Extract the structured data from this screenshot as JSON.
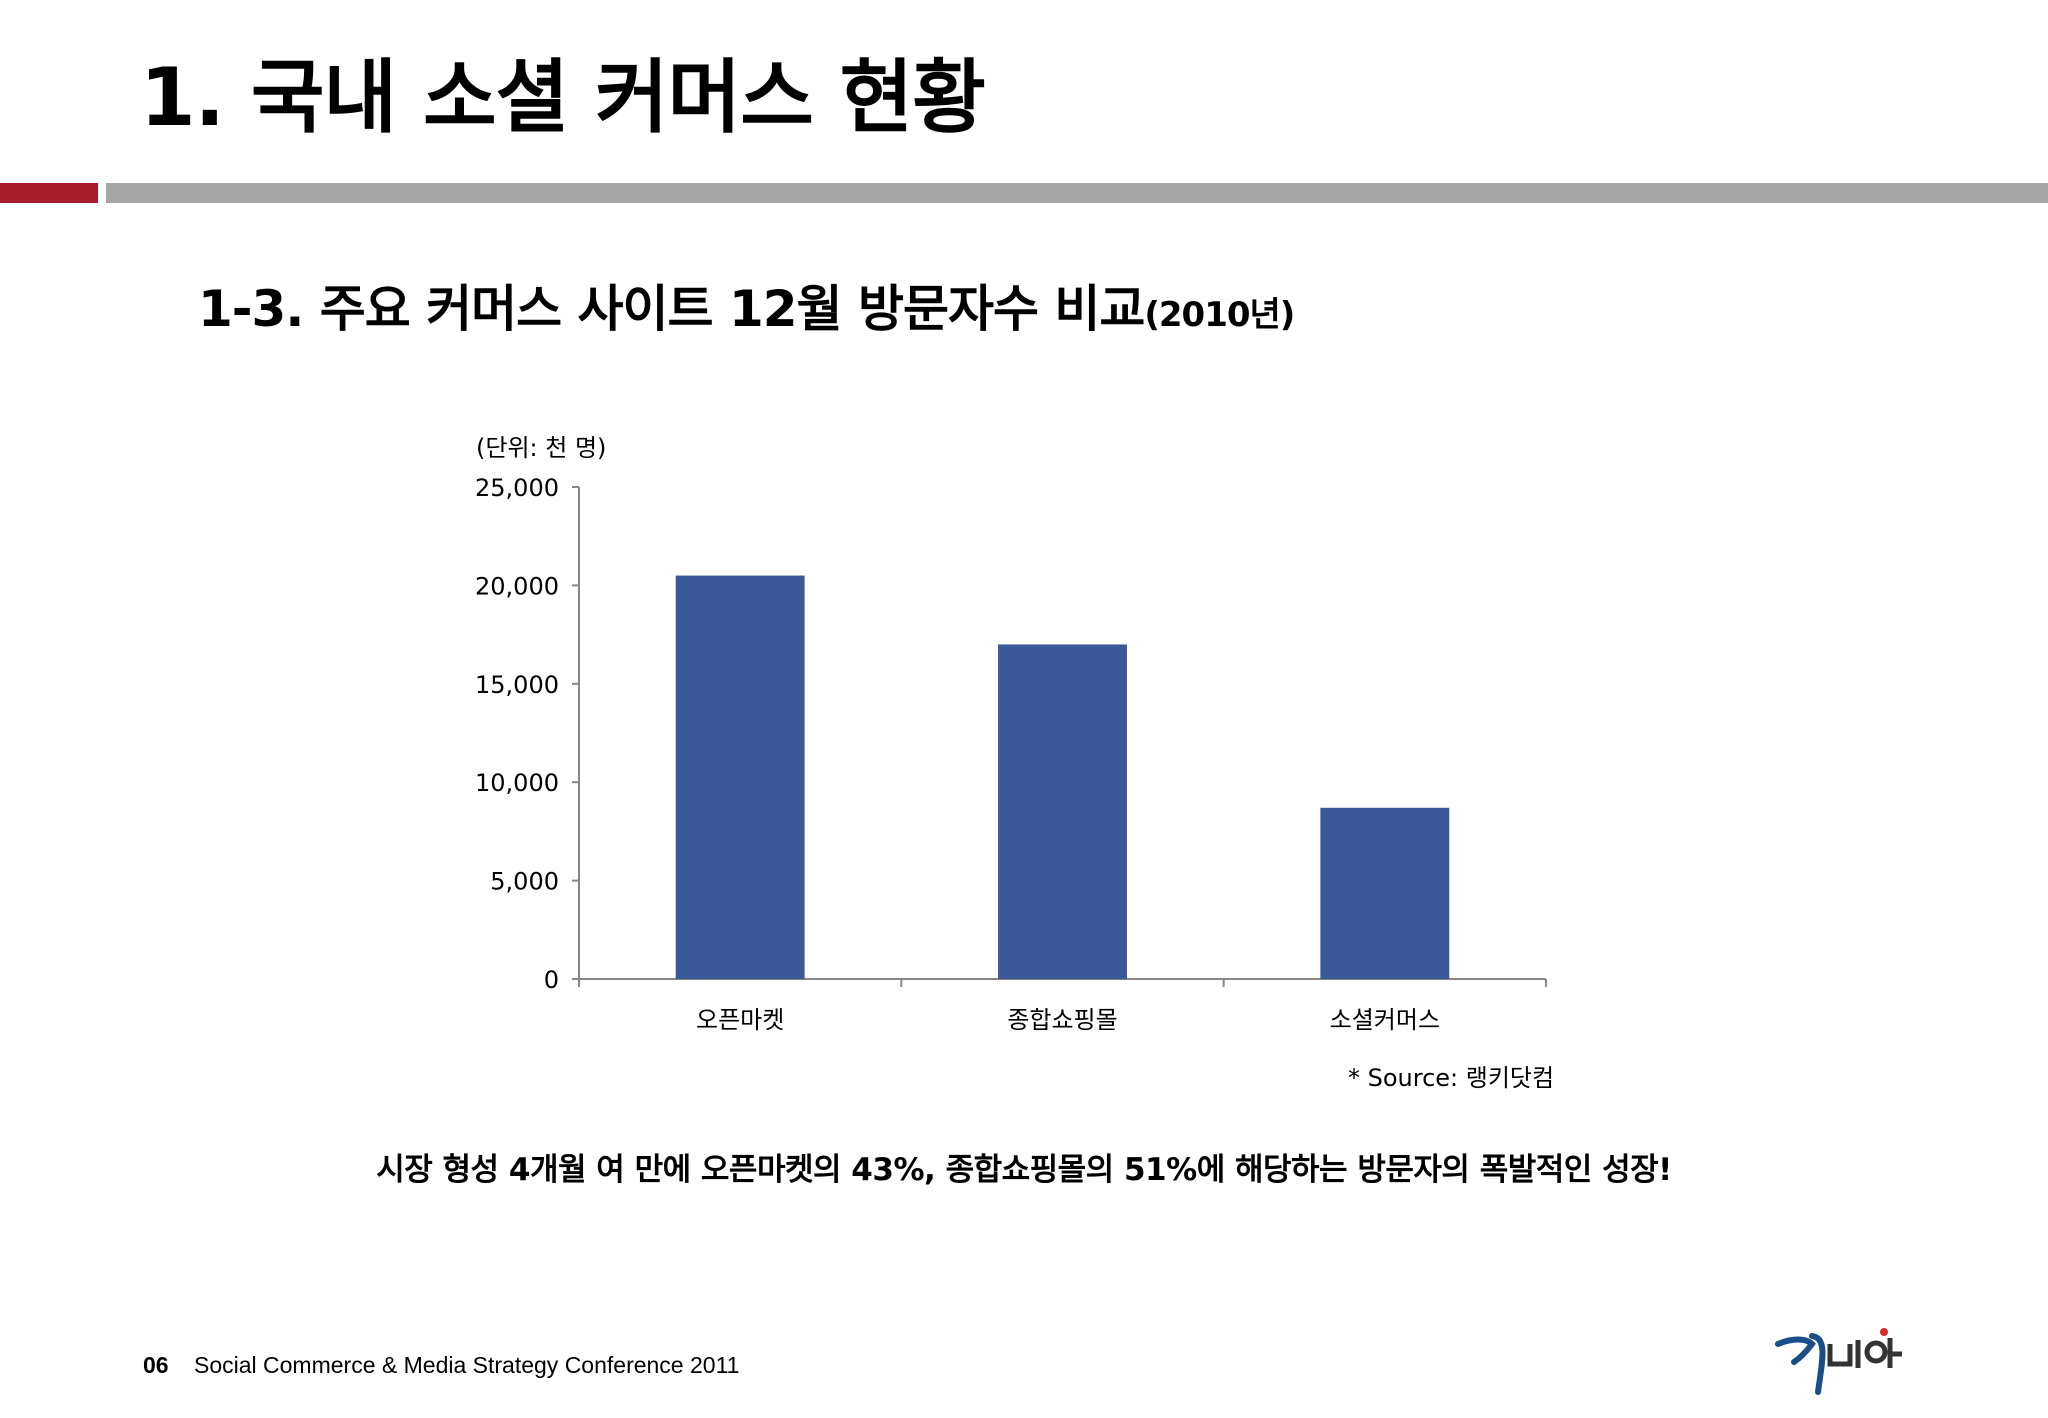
{
  "slide": {
    "title": "1. 국내 소셜 커머스 현황",
    "subtitle": "1-3. 주요 커머스 사이트 12월 방문자수 비교",
    "subtitle_year": "(2010년)",
    "conclusion": "시장 형성 4개월 여 만에 오픈마켓의 43%, 종합쇼핑몰의 51%에 해당하는 방문자의 폭발적인 성장!",
    "source": "* Source: 랭키닷컴"
  },
  "footer": {
    "page_number": "06",
    "conference": "Social Commerce & Media Strategy Conference 2011",
    "logo_text": "가비아"
  },
  "colors": {
    "accent_red": "#a81d2c",
    "rule_gray": "#a6a6a6",
    "bar_blue": "#3b5998"
  },
  "chart_data": {
    "type": "bar",
    "unit_label": "(단위: 천 명)",
    "categories": [
      "오픈마켓",
      "종합쇼핑몰",
      "소셜커머스"
    ],
    "values": [
      20500,
      17000,
      8700
    ],
    "ylim": [
      0,
      25000
    ],
    "yticks": [
      0,
      5000,
      10000,
      15000,
      20000,
      25000
    ],
    "ytick_labels": [
      "0",
      "5,000",
      "10,000",
      "15,000",
      "20,000",
      "25,000"
    ],
    "grid": false,
    "legend": "none"
  }
}
